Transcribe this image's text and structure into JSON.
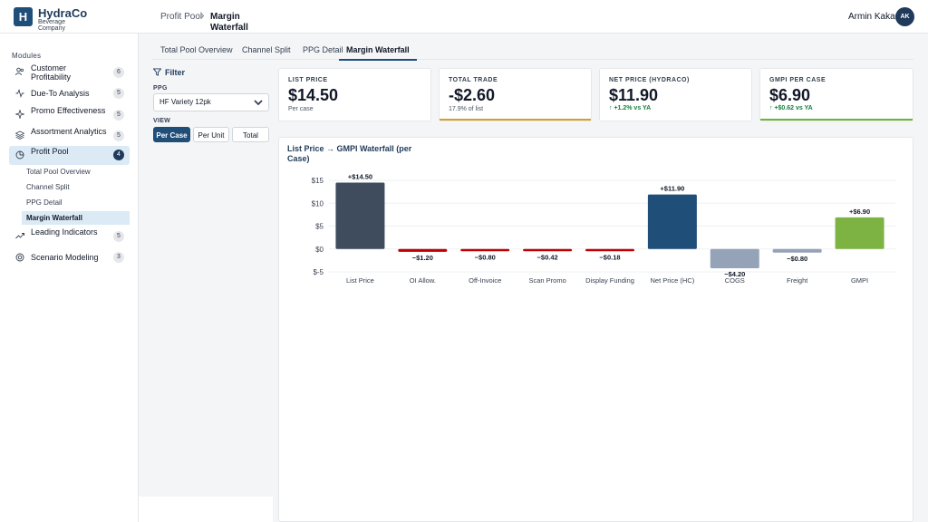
{
  "header": {
    "logo_letter": "H",
    "brand_name": "HydraCo",
    "brand_sub": "Beverage Company",
    "breadcrumb_parent": "Profit Pool",
    "breadcrumb_sep": "›",
    "breadcrumb_current": "Margin Waterfall",
    "user_name": "Armin Kakas",
    "user_initials": "AK"
  },
  "sidebar": {
    "section_label": "Modules",
    "items": [
      {
        "label": "Customer Profitability",
        "badge": "6",
        "icon": "users-icon"
      },
      {
        "label": "Due-To Analysis",
        "badge": "5",
        "icon": "activity-icon"
      },
      {
        "label": "Promo Effectiveness",
        "badge": "5",
        "icon": "sparkle-icon"
      },
      {
        "label": "Assortment Analytics",
        "badge": "5",
        "icon": "layers-icon"
      },
      {
        "label": "Profit Pool",
        "badge": "4",
        "icon": "pie-icon"
      },
      {
        "label": "Leading Indicators",
        "badge": "5",
        "icon": "trend-icon"
      },
      {
        "label": "Scenario Modeling",
        "badge": "3",
        "icon": "target-icon"
      }
    ],
    "subitems": [
      "Total Pool Overview",
      "Channel Split",
      "PPG Detail",
      "Margin Waterfall"
    ]
  },
  "tabs": [
    "Total Pool Overview",
    "Channel Split",
    "PPG Detail",
    "Margin Waterfall"
  ],
  "filter": {
    "title": "Filter",
    "ppg_label": "PPG",
    "ppg_value": "HF Variety 12pk",
    "view_label": "VIEW",
    "view_options": [
      "Per Case",
      "Per Unit",
      "Total"
    ]
  },
  "kpis": [
    {
      "label": "LIST PRICE",
      "value": "$14.50",
      "sub": "Per case",
      "change": "",
      "bar_color": ""
    },
    {
      "label": "TOTAL TRADE",
      "value": "-$2.60",
      "sub": "17.9% of list",
      "change": "",
      "bar_color": "#d69e2e"
    },
    {
      "label": "NET PRICE (HYDRACO)",
      "value": "$11.90",
      "sub": "",
      "change": "↑ +1.2% vs YA",
      "bar_color": ""
    },
    {
      "label": "GMPI PER CASE",
      "value": "$6.90",
      "sub": "",
      "change": "↑ +$0.62 vs YA",
      "bar_color": "#6db33f"
    }
  ],
  "chart_title": "List Price → GMPI Waterfall (per Case)",
  "chart_data": {
    "type": "bar",
    "title": "List Price → GMPI Waterfall (per Case)",
    "categories": [
      "List Price",
      "OI Allow.",
      "Off-Invoice",
      "Scan Promo",
      "Display Funding",
      "Net Price (HC)",
      "COGS",
      "Freight",
      "GMPI"
    ],
    "values": [
      14.5,
      -1.2,
      -0.8,
      -0.42,
      -0.18,
      11.9,
      -4.2,
      -0.8,
      6.9
    ],
    "data_labels": [
      "+$14.50",
      "−$1.20",
      "−$0.80",
      "−$0.42",
      "−$0.18",
      "+$11.90",
      "−$4.20",
      "−$0.80",
      "+$6.90"
    ],
    "colors": [
      "#3f4c5e",
      "#c00000",
      "#c00000",
      "#c00000",
      "#c00000",
      "#1f4e79",
      "#94a3b8",
      "#94a3b8",
      "#7cb342"
    ],
    "yticks": [
      15,
      10,
      5,
      0,
      -5
    ],
    "ytick_labels": [
      "$15",
      "$10",
      "$5",
      "$0",
      "$-5"
    ],
    "ylim": [
      -5,
      15
    ],
    "xlabel": "",
    "ylabel": ""
  }
}
